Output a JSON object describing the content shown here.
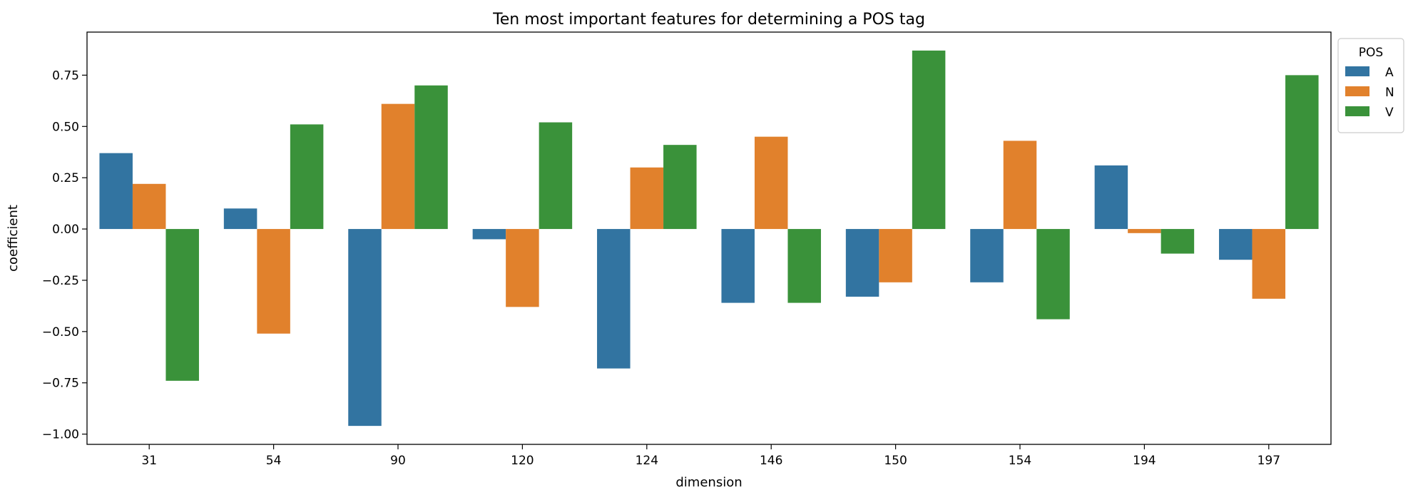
{
  "chart_data": {
    "type": "bar",
    "title": "Ten most important features for determining a POS tag",
    "xlabel": "dimension",
    "ylabel": "coefficient",
    "categories": [
      "31",
      "54",
      "90",
      "120",
      "124",
      "146",
      "150",
      "154",
      "194",
      "197"
    ],
    "ylim": [
      -1.05,
      0.96
    ],
    "yticks": [
      -1.0,
      -0.75,
      -0.5,
      -0.25,
      0.0,
      0.25,
      0.5,
      0.75
    ],
    "ytick_labels": [
      "−1.00",
      "−0.75",
      "−0.50",
      "−0.25",
      "0.00",
      "0.25",
      "0.50",
      "0.75"
    ],
    "grid": false,
    "legend": {
      "title": "POS",
      "placement": "outside-top-right"
    },
    "series": [
      {
        "name": "A",
        "color": "#3274a1",
        "values": [
          0.37,
          0.1,
          -0.96,
          -0.05,
          -0.68,
          -0.36,
          -0.33,
          -0.26,
          0.31,
          -0.15
        ]
      },
      {
        "name": "N",
        "color": "#e1812c",
        "values": [
          0.22,
          -0.51,
          0.61,
          -0.38,
          0.3,
          0.45,
          -0.26,
          0.43,
          -0.02,
          -0.34
        ]
      },
      {
        "name": "V",
        "color": "#3a923a",
        "values": [
          -0.74,
          0.51,
          0.7,
          0.52,
          0.41,
          -0.36,
          0.87,
          -0.44,
          -0.12,
          0.75
        ]
      }
    ]
  }
}
